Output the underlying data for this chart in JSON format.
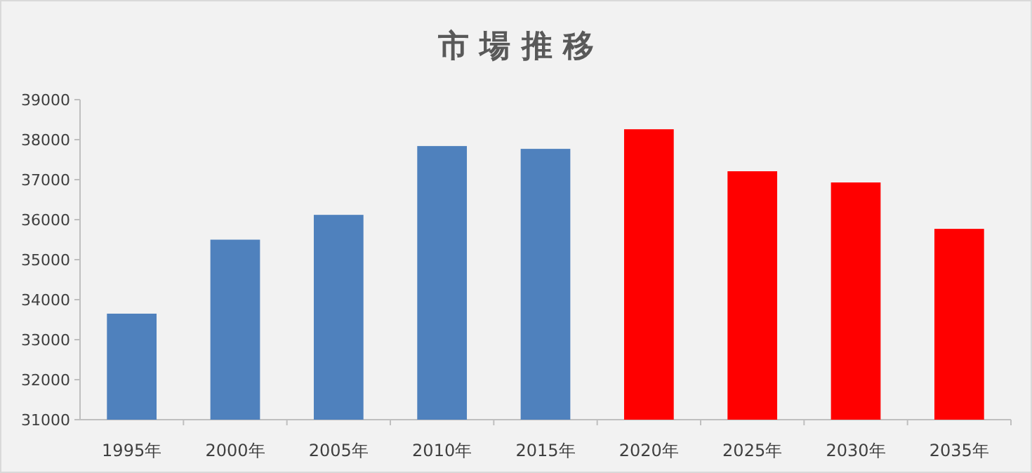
{
  "chart_data": {
    "type": "bar",
    "title": "市 場 推 移",
    "categories": [
      "1995年",
      "2000年",
      "2005年",
      "2010年",
      "2015年",
      "2020年",
      "2025年",
      "2030年",
      "2035年"
    ],
    "values": [
      33650,
      35500,
      36120,
      37840,
      37770,
      38260,
      37210,
      36930,
      35770
    ],
    "colors": [
      "#4f81bd",
      "#4f81bd",
      "#4f81bd",
      "#4f81bd",
      "#4f81bd",
      "#ff0000",
      "#ff0000",
      "#ff0000",
      "#ff0000"
    ],
    "ylim": [
      31000,
      39000
    ],
    "yticks": [
      31000,
      32000,
      33000,
      34000,
      35000,
      36000,
      37000,
      38000,
      39000
    ]
  }
}
